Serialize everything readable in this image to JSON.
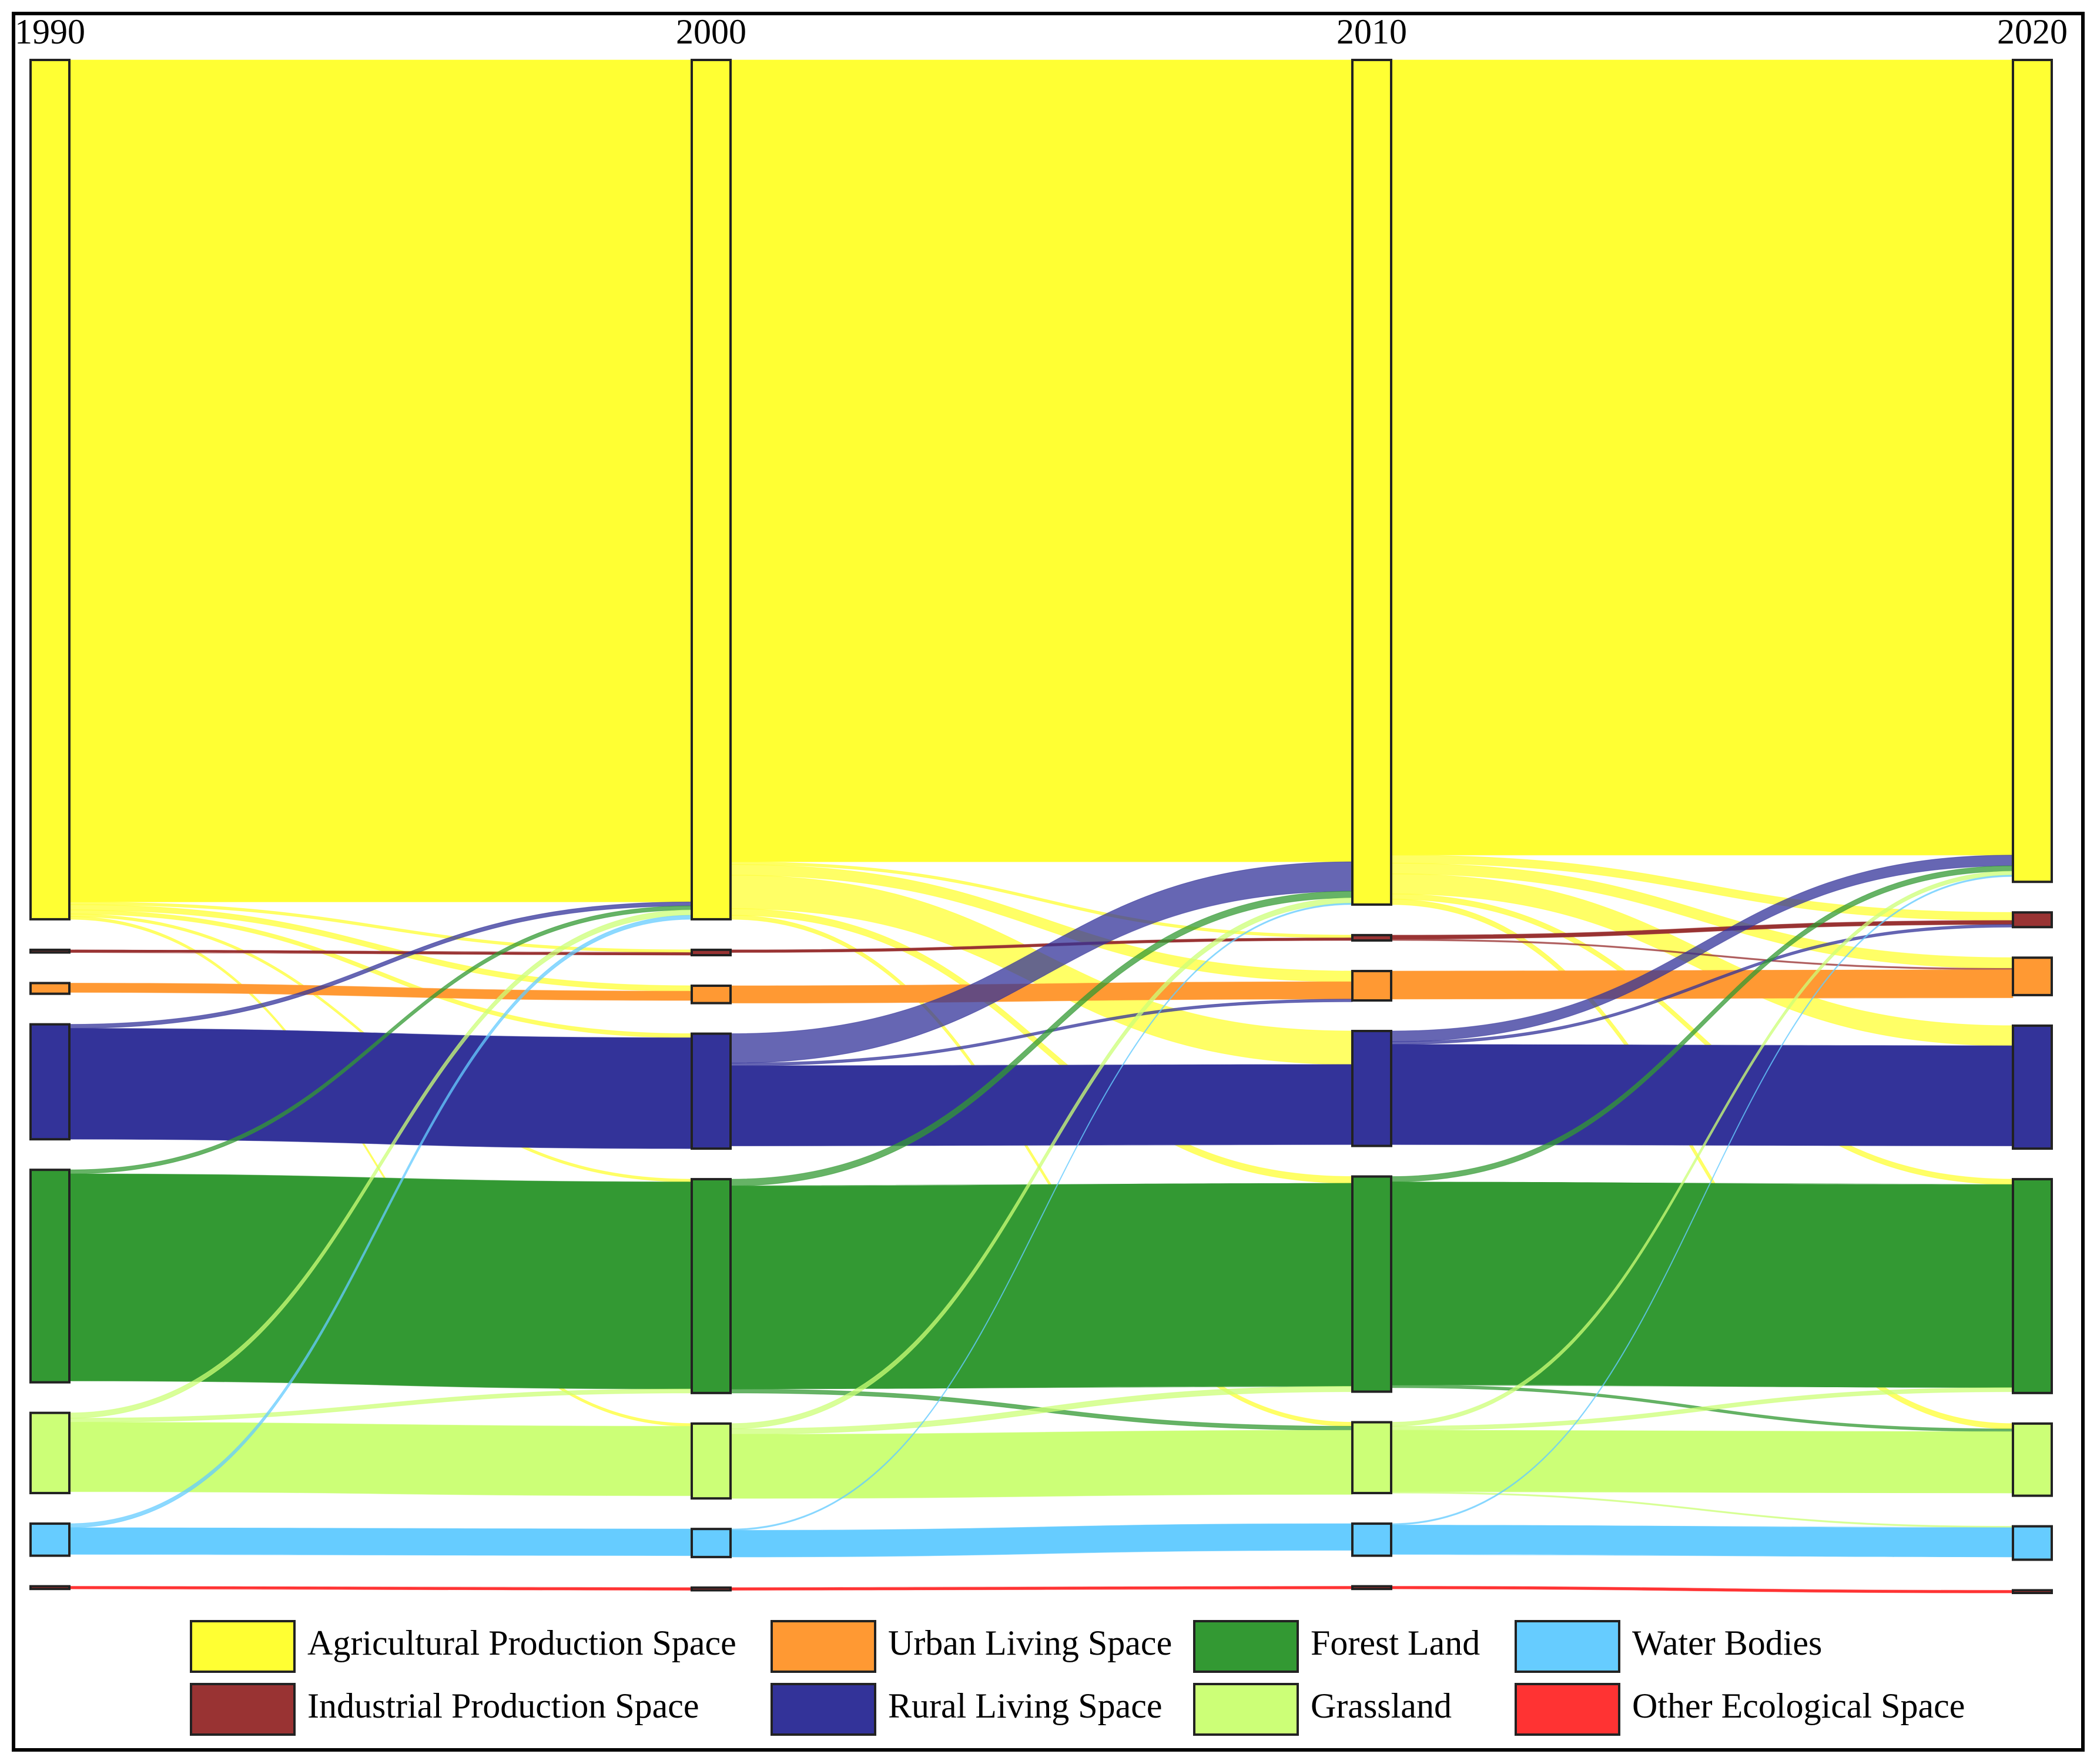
{
  "chart_data": {
    "type": "sankey",
    "columns": [
      "1990",
      "2000",
      "2010",
      "2020"
    ],
    "series": [
      {
        "name": "Agricultural Production Space",
        "color": "#ffff33",
        "values": [
          643,
          643,
          632,
          615
        ]
      },
      {
        "name": "Industrial Production Space",
        "color": "#993333",
        "values": [
          2,
          4,
          4,
          11
        ]
      },
      {
        "name": "Urban Living Space",
        "color": "#ff9933",
        "values": [
          8,
          13,
          22,
          28
        ]
      },
      {
        "name": "Rural Living Space",
        "color": "#333399",
        "values": [
          86,
          86,
          86,
          92
        ]
      },
      {
        "name": "Forest Land",
        "color": "#339933",
        "values": [
          159,
          160,
          161,
          160
        ]
      },
      {
        "name": "Grassland",
        "color": "#ccff77",
        "values": [
          60,
          56,
          53,
          54
        ]
      },
      {
        "name": "Water Bodies",
        "color": "#66ccff",
        "values": [
          24,
          21,
          24,
          25
        ]
      },
      {
        "name": "Other Ecological Space",
        "color": "#ff3333",
        "values": [
          2,
          2,
          2,
          2
        ]
      }
    ],
    "flows": [
      {
        "links": [
          [
            "Agricultural Production Space",
            "Agricultural Production Space",
            630
          ],
          [
            "Agricultural Production Space",
            "Industrial Production Space",
            2
          ],
          [
            "Agricultural Production Space",
            "Urban Living Space",
            4
          ],
          [
            "Agricultural Production Space",
            "Rural Living Space",
            3
          ],
          [
            "Agricultural Production Space",
            "Forest Land",
            2
          ],
          [
            "Agricultural Production Space",
            "Grassland",
            2
          ],
          [
            "Industrial Production Space",
            "Industrial Production Space",
            2
          ],
          [
            "Urban Living Space",
            "Urban Living Space",
            7
          ],
          [
            "Rural Living Space",
            "Agricultural Production Space",
            3
          ],
          [
            "Rural Living Space",
            "Rural Living Space",
            83
          ],
          [
            "Forest Land",
            "Agricultural Production Space",
            3
          ],
          [
            "Forest Land",
            "Forest Land",
            155
          ],
          [
            "Grassland",
            "Agricultural Production Space",
            4
          ],
          [
            "Grassland",
            "Forest Land",
            3
          ],
          [
            "Grassland",
            "Grassland",
            52
          ],
          [
            "Water Bodies",
            "Agricultural Production Space",
            3
          ],
          [
            "Water Bodies",
            "Water Bodies",
            20
          ],
          [
            "Other Ecological Space",
            "Other Ecological Space",
            2
          ]
        ]
      },
      {
        "links": [
          [
            "Agricultural Production Space",
            "Agricultural Production Space",
            600
          ],
          [
            "Agricultural Production Space",
            "Industrial Production Space",
            2
          ],
          [
            "Agricultural Production Space",
            "Urban Living Space",
            8
          ],
          [
            "Agricultural Production Space",
            "Rural Living Space",
            25
          ],
          [
            "Agricultural Production Space",
            "Forest Land",
            5
          ],
          [
            "Agricultural Production Space",
            "Grassland",
            3
          ],
          [
            "Industrial Production Space",
            "Industrial Production Space",
            2
          ],
          [
            "Urban Living Space",
            "Urban Living Space",
            13
          ],
          [
            "Rural Living Space",
            "Agricultural Production Space",
            22
          ],
          [
            "Rural Living Space",
            "Urban Living Space",
            2
          ],
          [
            "Rural Living Space",
            "Rural Living Space",
            60
          ],
          [
            "Forest Land",
            "Agricultural Production Space",
            5
          ],
          [
            "Forest Land",
            "Forest Land",
            152
          ],
          [
            "Forest Land",
            "Grassland",
            3
          ],
          [
            "Grassland",
            "Agricultural Production Space",
            4
          ],
          [
            "Grassland",
            "Forest Land",
            4
          ],
          [
            "Grassland",
            "Grassland",
            48
          ],
          [
            "Water Bodies",
            "Agricultural Production Space",
            1
          ],
          [
            "Water Bodies",
            "Water Bodies",
            20
          ],
          [
            "Other Ecological Space",
            "Other Ecological Space",
            2
          ]
        ]
      },
      {
        "links": [
          [
            "Agricultural Production Space",
            "Agricultural Production Space",
            595
          ],
          [
            "Agricultural Production Space",
            "Industrial Production Space",
            6
          ],
          [
            "Agricultural Production Space",
            "Urban Living Space",
            8
          ],
          [
            "Agricultural Production Space",
            "Rural Living Space",
            15
          ],
          [
            "Agricultural Production Space",
            "Forest Land",
            4
          ],
          [
            "Agricultural Production Space",
            "Grassland",
            4
          ],
          [
            "Industrial Production Space",
            "Industrial Production Space",
            3
          ],
          [
            "Industrial Production Space",
            "Urban Living Space",
            1
          ],
          [
            "Urban Living Space",
            "Urban Living Space",
            21
          ],
          [
            "Rural Living Space",
            "Agricultural Production Space",
            8
          ],
          [
            "Rural Living Space",
            "Industrial Production Space",
            2
          ],
          [
            "Rural Living Space",
            "Rural Living Space",
            75
          ],
          [
            "Forest Land",
            "Agricultural Production Space",
            4
          ],
          [
            "Forest Land",
            "Forest Land",
            152
          ],
          [
            "Forest Land",
            "Grassland",
            2
          ],
          [
            "Grassland",
            "Agricultural Production Space",
            3
          ],
          [
            "Grassland",
            "Forest Land",
            3
          ],
          [
            "Grassland",
            "Grassland",
            46
          ],
          [
            "Grassland",
            "Water Bodies",
            1
          ],
          [
            "Water Bodies",
            "Agricultural Production Space",
            1
          ],
          [
            "Water Bodies",
            "Water Bodies",
            22
          ],
          [
            "Other Ecological Space",
            "Other Ecological Space",
            2
          ]
        ]
      }
    ]
  }
}
